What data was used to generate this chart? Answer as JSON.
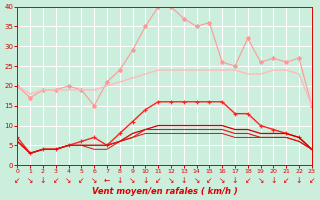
{
  "series": [
    {
      "label": "rafales_scattered",
      "color": "#ff9999",
      "lw": 0.8,
      "marker": "D",
      "ms": 2.0,
      "values": [
        20,
        17,
        19,
        19,
        20,
        19,
        15,
        21,
        24,
        29,
        35,
        40,
        40,
        37,
        35,
        36,
        26,
        25,
        32,
        26,
        27,
        26,
        27,
        15
      ]
    },
    {
      "label": "rafales_smooth",
      "color": "#ffbbbb",
      "lw": 1.0,
      "marker": null,
      "ms": 0,
      "values": [
        20,
        18,
        19,
        19,
        19,
        19,
        19,
        20,
        21,
        22,
        23,
        24,
        24,
        24,
        24,
        24,
        24,
        24,
        23,
        23,
        24,
        24,
        23,
        15
      ]
    },
    {
      "label": "vent_plus",
      "color": "#ff2222",
      "lw": 1.0,
      "marker": "+",
      "ms": 3.5,
      "values": [
        7,
        3,
        4,
        4,
        5,
        6,
        7,
        5,
        8,
        11,
        14,
        16,
        16,
        16,
        16,
        16,
        16,
        13,
        13,
        10,
        9,
        8,
        7,
        4
      ]
    },
    {
      "label": "vent_line1",
      "color": "#cc0000",
      "lw": 0.9,
      "marker": null,
      "ms": 0,
      "values": [
        6,
        3,
        4,
        4,
        5,
        5,
        5,
        5,
        6,
        8,
        9,
        10,
        10,
        10,
        10,
        10,
        10,
        9,
        9,
        8,
        8,
        8,
        7,
        4
      ]
    },
    {
      "label": "vent_line2",
      "color": "#ee1111",
      "lw": 0.8,
      "marker": null,
      "ms": 0,
      "values": [
        6,
        3,
        4,
        4,
        5,
        5,
        5,
        5,
        6,
        7,
        9,
        9,
        9,
        9,
        9,
        9,
        9,
        8,
        8,
        7,
        7,
        7,
        6,
        4
      ]
    },
    {
      "label": "vent_line3",
      "color": "#dd1111",
      "lw": 0.7,
      "marker": null,
      "ms": 0,
      "values": [
        6,
        3,
        4,
        4,
        5,
        5,
        4,
        4,
        6,
        7,
        8,
        8,
        8,
        8,
        8,
        8,
        8,
        7,
        7,
        7,
        7,
        7,
        6,
        4
      ]
    }
  ],
  "xlabel": "Vent moyen/en rafales ( km/h )",
  "xlim": [
    0,
    23
  ],
  "ylim": [
    0,
    40
  ],
  "yticks": [
    0,
    5,
    10,
    15,
    20,
    25,
    30,
    35,
    40
  ],
  "bg_color": "#cceedd",
  "grid_color": "#ffffff",
  "tick_color": "#dd0000",
  "label_color": "#dd0000",
  "arrow_chars": [
    "↙",
    "↘",
    "↓",
    "↙",
    "↘",
    "↙",
    "↘",
    "←",
    "↓",
    "↘",
    "↓",
    "↙",
    "↘",
    "↓",
    "↘",
    "↙",
    "↘",
    "↓",
    "↙",
    "↘",
    "↓",
    "↙",
    "↓",
    "↙"
  ]
}
